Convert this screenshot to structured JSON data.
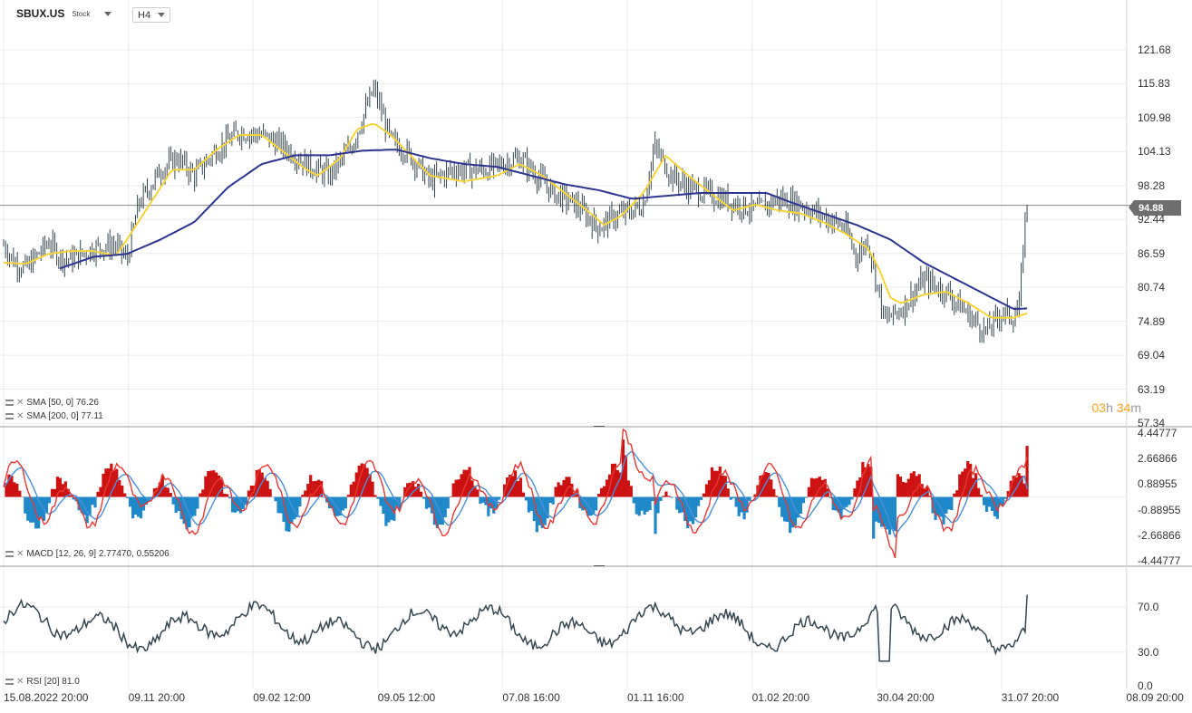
{
  "header": {
    "symbol": "SBUX.US",
    "type": "Stock",
    "timeframe": "H4"
  },
  "price": {
    "last_label": "94.88",
    "last": 94.88
  },
  "countdown": {
    "hours": "03",
    "h_unit": "h",
    "minutes": "34",
    "m_unit": "m"
  },
  "legends": {
    "sma50": "SMA [50, 0] 76.26",
    "sma200": "SMA [200, 0] 77.11",
    "macd": "MACD [12, 26, 9] 2.77470, 0.55206",
    "rsi": "RSI [20] 81.0"
  },
  "axes": {
    "price_ticks": [
      "121.68",
      "115.83",
      "109.98",
      "104.13",
      "98.28",
      "92.44",
      "86.59",
      "80.74",
      "74.89",
      "69.04",
      "63.19",
      "57.34"
    ],
    "macd_ticks": [
      "4.44777",
      "2.66866",
      "0.88955",
      "-0.88955",
      "-2.66866",
      "-4.44777"
    ],
    "rsi_ticks": [
      "70.0",
      "30.0",
      "0.0"
    ],
    "x_ticks": [
      "15.08.2022  20:00",
      "09.11  20:00",
      "09.02  12:00",
      "09.05  12:00",
      "07.08  16:00",
      "01.11  16:00",
      "01.02  20:00",
      "30.04  20:00",
      "31.07  20:00",
      "08.09  20:00"
    ]
  },
  "colors": {
    "price_bars": "#37474f",
    "sma50": "#f5d33a",
    "sma200": "#2d3590",
    "macd_line": "#e53935",
    "signal_line": "#4a90d9",
    "hist_pos": "#cc1111",
    "hist_neg": "#1e88c8",
    "rsi": "#37474f",
    "countdown": "#f2a41c",
    "price_tag": "#6e6e6e"
  },
  "chart_data": {
    "type": "line",
    "title": "SBUX.US H4",
    "x_labels": [
      "15.08.2022  20:00",
      "09.11  20:00",
      "09.02  12:00",
      "09.05  12:00",
      "07.08  16:00",
      "01.11  16:00",
      "01.02  20:00",
      "30.04  20:00",
      "31.07  20:00",
      "08.09  20:00"
    ],
    "price_ylim": [
      57.34,
      121.68
    ],
    "price_anchors": [
      [
        0,
        88
      ],
      [
        0.01,
        85
      ],
      [
        0.02,
        84
      ],
      [
        0.04,
        88.5
      ],
      [
        0.05,
        86
      ],
      [
        0.06,
        85.5
      ],
      [
        0.08,
        87.5
      ],
      [
        0.1,
        88
      ],
      [
        0.11,
        85.5
      ],
      [
        0.12,
        95
      ],
      [
        0.14,
        101
      ],
      [
        0.155,
        103
      ],
      [
        0.17,
        100
      ],
      [
        0.19,
        104.5
      ],
      [
        0.21,
        107.5
      ],
      [
        0.23,
        107
      ],
      [
        0.25,
        105
      ],
      [
        0.27,
        102
      ],
      [
        0.29,
        100
      ],
      [
        0.31,
        105
      ],
      [
        0.33,
        115
      ],
      [
        0.345,
        106
      ],
      [
        0.36,
        104
      ],
      [
        0.38,
        99
      ],
      [
        0.4,
        101
      ],
      [
        0.43,
        101
      ],
      [
        0.46,
        103
      ],
      [
        0.49,
        97
      ],
      [
        0.51,
        95
      ],
      [
        0.53,
        91
      ],
      [
        0.545,
        93
      ],
      [
        0.56,
        94
      ],
      [
        0.57,
        95
      ],
      [
        0.58,
        105
      ],
      [
        0.595,
        100
      ],
      [
        0.61,
        98
      ],
      [
        0.64,
        96
      ],
      [
        0.67,
        94
      ],
      [
        0.69,
        96
      ],
      [
        0.71,
        95
      ],
      [
        0.73,
        93
      ],
      [
        0.75,
        91
      ],
      [
        0.76,
        86
      ],
      [
        0.77,
        89
      ],
      [
        0.785,
        75
      ],
      [
        0.8,
        77
      ],
      [
        0.82,
        82
      ],
      [
        0.84,
        80
      ],
      [
        0.86,
        76
      ],
      [
        0.875,
        73
      ],
      [
        0.89,
        76.5
      ],
      [
        0.9,
        75.5
      ],
      [
        0.905,
        77.5
      ],
      [
        0.91,
        92
      ],
      [
        0.912,
        94.9
      ]
    ],
    "sma50_anchors": [
      [
        0,
        85
      ],
      [
        0.02,
        84.8
      ],
      [
        0.04,
        86.5
      ],
      [
        0.06,
        87
      ],
      [
        0.08,
        87
      ],
      [
        0.1,
        86.2
      ],
      [
        0.11,
        89
      ],
      [
        0.13,
        95
      ],
      [
        0.15,
        101
      ],
      [
        0.17,
        101
      ],
      [
        0.19,
        104.5
      ],
      [
        0.21,
        107
      ],
      [
        0.23,
        107
      ],
      [
        0.25,
        104
      ],
      [
        0.27,
        101
      ],
      [
        0.28,
        100
      ],
      [
        0.3,
        103
      ],
      [
        0.315,
        108
      ],
      [
        0.33,
        109
      ],
      [
        0.345,
        107
      ],
      [
        0.36,
        104
      ],
      [
        0.38,
        100
      ],
      [
        0.41,
        99
      ],
      [
        0.44,
        100
      ],
      [
        0.46,
        102
      ],
      [
        0.48,
        100
      ],
      [
        0.5,
        97
      ],
      [
        0.52,
        94
      ],
      [
        0.535,
        91.5
      ],
      [
        0.55,
        93
      ],
      [
        0.57,
        97
      ],
      [
        0.59,
        103.5
      ],
      [
        0.61,
        100
      ],
      [
        0.63,
        97
      ],
      [
        0.65,
        94
      ],
      [
        0.67,
        95
      ],
      [
        0.69,
        94
      ],
      [
        0.71,
        93.5
      ],
      [
        0.73,
        92
      ],
      [
        0.75,
        90
      ],
      [
        0.77,
        87.5
      ],
      [
        0.78,
        84
      ],
      [
        0.79,
        79
      ],
      [
        0.8,
        78
      ],
      [
        0.82,
        79.5
      ],
      [
        0.84,
        80
      ],
      [
        0.86,
        78
      ],
      [
        0.88,
        75.5
      ],
      [
        0.9,
        75.5
      ],
      [
        0.912,
        76.26
      ]
    ],
    "sma200_anchors": [
      [
        0.05,
        84
      ],
      [
        0.08,
        86
      ],
      [
        0.11,
        86.5
      ],
      [
        0.14,
        89
      ],
      [
        0.17,
        92
      ],
      [
        0.2,
        98
      ],
      [
        0.23,
        102
      ],
      [
        0.26,
        103.5
      ],
      [
        0.29,
        103.5
      ],
      [
        0.32,
        104.3
      ],
      [
        0.35,
        104.5
      ],
      [
        0.38,
        103
      ],
      [
        0.41,
        102
      ],
      [
        0.44,
        101.5
      ],
      [
        0.47,
        100
      ],
      [
        0.5,
        98.5
      ],
      [
        0.53,
        97.5
      ],
      [
        0.56,
        96
      ],
      [
        0.59,
        96.5
      ],
      [
        0.62,
        97
      ],
      [
        0.65,
        97
      ],
      [
        0.68,
        97
      ],
      [
        0.7,
        95.5
      ],
      [
        0.73,
        93.5
      ],
      [
        0.76,
        91.5
      ],
      [
        0.79,
        89
      ],
      [
        0.82,
        85
      ],
      [
        0.85,
        82
      ],
      [
        0.88,
        79
      ],
      [
        0.9,
        77
      ],
      [
        0.912,
        77.11
      ]
    ],
    "macd_ylim": [
      -4.44777,
      4.44777
    ],
    "macd_value": 2.7747,
    "macd_signal": 0.55206,
    "rsi_ylim": [
      0,
      100
    ],
    "rsi_levels": [
      30,
      70
    ],
    "rsi_value": 81.0,
    "series": [
      {
        "name": "SMA [50, 0]",
        "last": 76.26
      },
      {
        "name": "SMA [200, 0]",
        "last": 77.11
      },
      {
        "name": "MACD [12, 26, 9]",
        "last": 2.7747
      },
      {
        "name": "RSI [20]",
        "last": 81.0
      }
    ]
  }
}
